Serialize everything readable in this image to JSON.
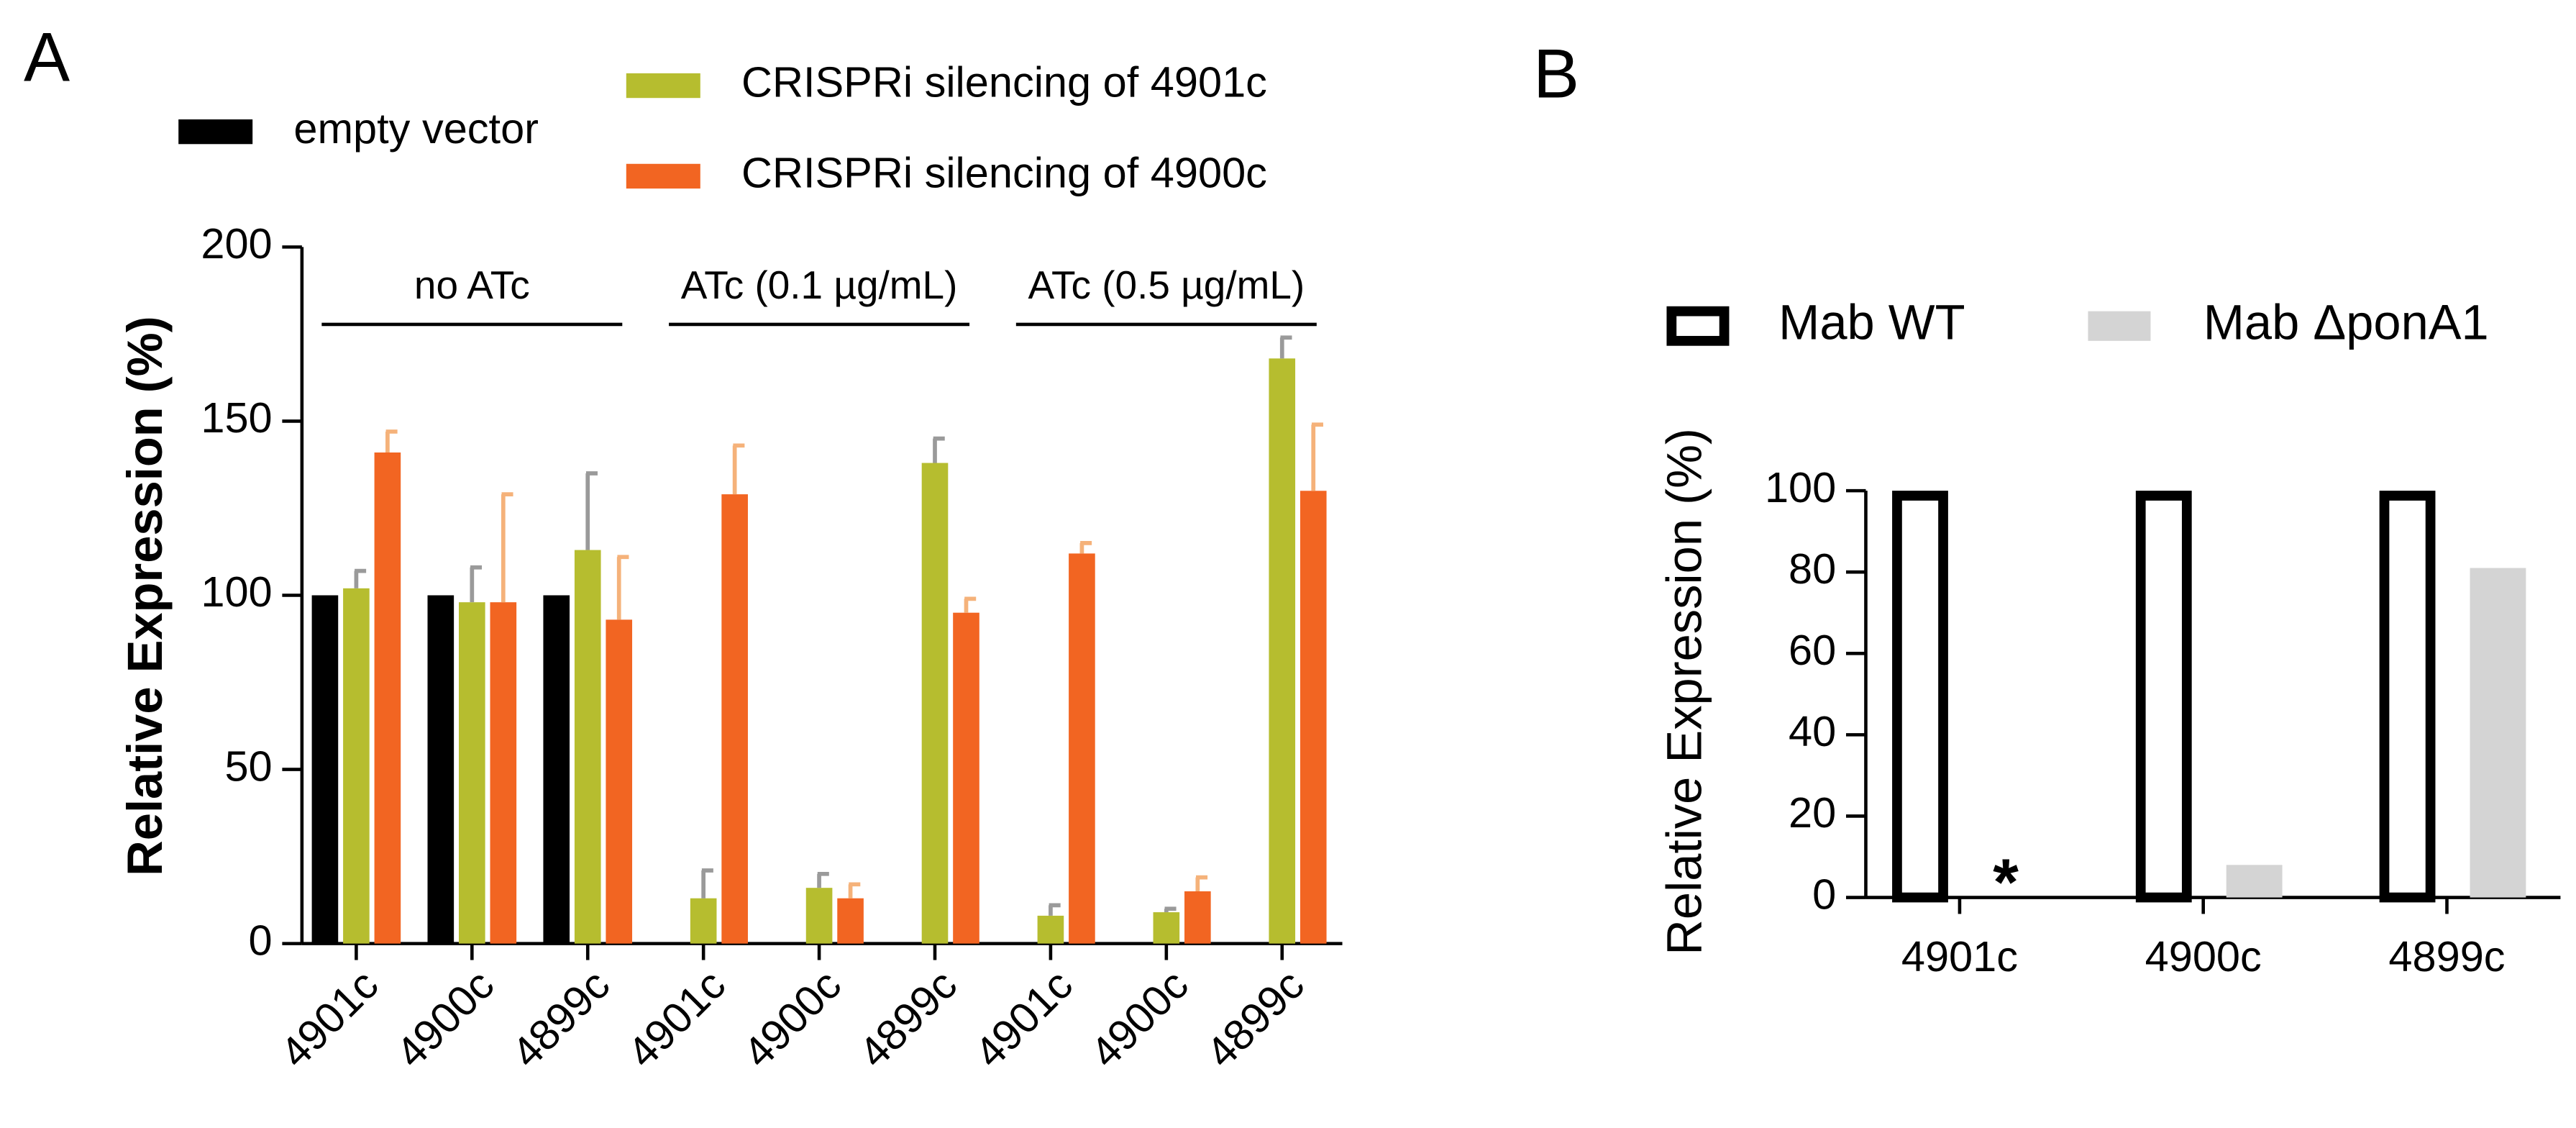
{
  "chart_data": [
    {
      "type": "bar",
      "panel": "A",
      "y_label": "Relative Expression (%)",
      "categories": [
        "4901c",
        "4900c",
        "4899c",
        "4901c",
        "4900c",
        "4899c",
        "4901c",
        "4900c",
        "4899c"
      ],
      "groups": [
        {
          "label": "no ATc",
          "from": 0,
          "to": 2
        },
        {
          "label": "ATc (0.1 µg/mL)",
          "from": 3,
          "to": 5
        },
        {
          "label": "ATc (0.5 µg/mL)",
          "from": 6,
          "to": 8
        }
      ],
      "series": [
        {
          "name": "empty vector",
          "color": "#000000",
          "values": [
            100,
            100,
            100,
            null,
            null,
            null,
            null,
            null,
            null
          ]
        },
        {
          "name": "CRISPRi silencing of 4901c",
          "color": "#b6bd2f",
          "error_color": "#9a9a9a",
          "values": [
            102,
            98,
            113,
            13,
            16,
            138,
            8,
            9,
            168
          ],
          "errors": [
            5,
            10,
            22,
            8,
            4,
            7,
            3,
            1,
            6
          ]
        },
        {
          "name": "CRISPRi silencing of 4900c",
          "color": "#f26522",
          "error_color": "#f5b27a",
          "values": [
            141,
            98,
            93,
            129,
            13,
            95,
            112,
            15,
            130
          ],
          "errors": [
            6,
            31,
            18,
            14,
            4,
            4,
            3,
            4,
            19
          ]
        }
      ],
      "ylim": [
        0,
        200
      ],
      "yticks": [
        0,
        50,
        100,
        150,
        200
      ]
    },
    {
      "type": "bar",
      "panel": "B",
      "y_label": "Relative Expression (%)",
      "categories": [
        "4901c",
        "4900c",
        "4899c"
      ],
      "series": [
        {
          "name": "Mab WT",
          "color": "#000000",
          "style": "outline",
          "values": [
            100,
            100,
            100
          ]
        },
        {
          "name": "Mab ΔponA1",
          "color": "#d4d4d4",
          "values": [
            0,
            8,
            81
          ]
        }
      ],
      "annotation": "*",
      "ylim": [
        0,
        100
      ],
      "yticks": [
        0,
        20,
        40,
        60,
        80,
        100
      ]
    }
  ]
}
